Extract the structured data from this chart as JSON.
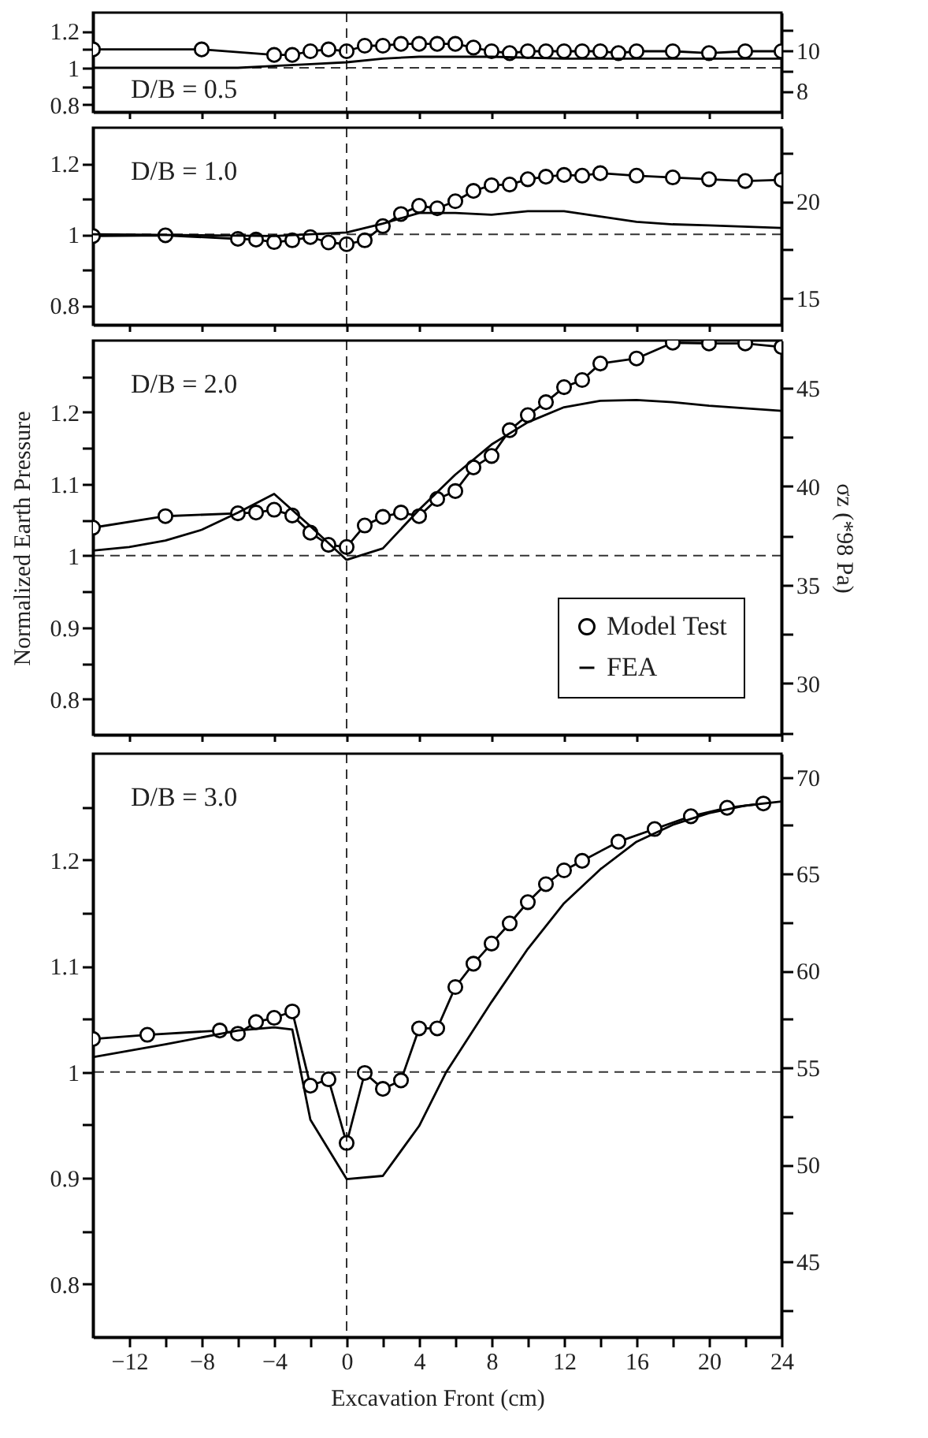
{
  "chart_data": [
    {
      "type": "line",
      "xlim": [
        -14,
        24
      ],
      "ylim": [
        0.76,
        1.3
      ],
      "y2lim": [
        6.95,
        11.9
      ],
      "tick_labels": "y",
      "grid": false,
      "line_style": "solid",
      "xticks": [
        {
          "value": -12,
          "label": null
        },
        {
          "value": -8,
          "label": null
        },
        {
          "value": -4,
          "label": null
        },
        {
          "value": 0,
          "label": null
        },
        {
          "value": 4,
          "label": null
        },
        {
          "value": 8,
          "label": null
        },
        {
          "value": 12,
          "label": null
        },
        {
          "value": 16,
          "label": null
        },
        {
          "value": 20,
          "label": null
        },
        {
          "value": 24,
          "label": null
        }
      ],
      "yticks": [
        0.8,
        {
          "value": 0.9,
          "label": null
        },
        1,
        {
          "value": 1.1,
          "label": null
        },
        1.2
      ],
      "y2ticks": [
        8,
        {
          "value": 9,
          "label": null
        },
        10,
        {
          "value": 11,
          "label": null
        }
      ],
      "annotations": [
        "D/B = 0.5"
      ],
      "ref_lines": [
        {
          "axis": "y",
          "value": 1,
          "color": "#000000",
          "line_style": "dashed"
        },
        {
          "axis": "x",
          "value": 0,
          "color": "#000000",
          "line_style": "dashed"
        }
      ],
      "series": [
        {
          "color": "#000000",
          "marker": "circle",
          "x": [
            -14,
            -8,
            -4,
            -3,
            -2,
            -1,
            0,
            1,
            2,
            3,
            4,
            5,
            6,
            7,
            8,
            9,
            10,
            11,
            12,
            13,
            14,
            15,
            16,
            18,
            20,
            22,
            24
          ],
          "values": [
            1.1,
            1.1,
            1.07,
            1.07,
            1.09,
            1.1,
            1.09,
            1.12,
            1.12,
            1.13,
            1.13,
            1.13,
            1.13,
            1.11,
            1.09,
            1.08,
            1.09,
            1.09,
            1.09,
            1.09,
            1.09,
            1.08,
            1.09,
            1.09,
            1.08,
            1.09,
            1.09
          ]
        },
        {
          "color": "#000000",
          "marker": "none",
          "x": [
            -14,
            -10,
            -6,
            -4,
            -2,
            0,
            2,
            4,
            6,
            8,
            12,
            16,
            20,
            24
          ],
          "values": [
            1.0,
            1.0,
            1.0,
            1.01,
            1.02,
            1.03,
            1.05,
            1.06,
            1.06,
            1.06,
            1.05,
            1.05,
            1.05,
            1.05
          ]
        }
      ]
    },
    {
      "type": "line",
      "xlim": [
        -14,
        24
      ],
      "ylim": [
        0.745,
        1.3
      ],
      "y2lim": [
        13.63,
        23.8
      ],
      "tick_labels": "y",
      "grid": false,
      "line_style": "solid",
      "xticks": [
        {
          "value": -12,
          "label": null
        },
        {
          "value": -8,
          "label": null
        },
        {
          "value": -4,
          "label": null
        },
        {
          "value": 0,
          "label": null
        },
        {
          "value": 4,
          "label": null
        },
        {
          "value": 8,
          "label": null
        },
        {
          "value": 12,
          "label": null
        },
        {
          "value": 16,
          "label": null
        },
        {
          "value": 20,
          "label": null
        },
        {
          "value": 24,
          "label": null
        }
      ],
      "yticks": [
        0.8,
        {
          "value": 0.9,
          "label": null
        },
        1,
        {
          "value": 1.1,
          "label": null
        },
        1.2
      ],
      "y2ticks": [
        15,
        {
          "value": 17.5,
          "label": null
        },
        20,
        {
          "value": 22.5,
          "label": null
        }
      ],
      "annotations": [
        "D/B = 1.0"
      ],
      "ref_lines": [
        {
          "axis": "y",
          "value": 1,
          "color": "#000000",
          "line_style": "dashed"
        },
        {
          "axis": "x",
          "value": 0,
          "color": "#000000",
          "line_style": "dashed"
        }
      ],
      "series": [
        {
          "color": "#000000",
          "marker": "circle",
          "x": [
            -14,
            -10,
            -6,
            -5,
            -4,
            -3,
            -2,
            -1,
            0,
            1,
            2,
            3,
            4,
            5,
            6,
            7,
            8,
            9,
            10,
            11,
            12,
            13,
            14,
            16,
            18,
            20,
            22,
            24
          ],
          "values": [
            0.995,
            0.997,
            0.987,
            0.985,
            0.978,
            0.983,
            0.992,
            0.977,
            0.972,
            0.983,
            1.023,
            1.057,
            1.08,
            1.073,
            1.093,
            1.122,
            1.138,
            1.14,
            1.155,
            1.162,
            1.167,
            1.165,
            1.172,
            1.165,
            1.16,
            1.155,
            1.15,
            1.153
          ]
        },
        {
          "color": "#000000",
          "marker": "none",
          "x": [
            -14,
            -4,
            0,
            2,
            4,
            6,
            8,
            10,
            12,
            14,
            16,
            18,
            20,
            24
          ],
          "values": [
            1.0,
            0.995,
            1.005,
            1.03,
            1.06,
            1.06,
            1.055,
            1.065,
            1.065,
            1.05,
            1.035,
            1.028,
            1.025,
            1.018
          ]
        }
      ]
    },
    {
      "type": "line",
      "xlim": [
        -14,
        24
      ],
      "ylim": [
        0.75,
        1.3
      ],
      "y2lim": [
        27.4,
        47.4
      ],
      "tick_labels": "y",
      "grid": false,
      "line_style": "solid",
      "legend": "bottom right",
      "ylabel": "Normalized Earth Pressure",
      "y2label": "σz (*98 Pa)",
      "xticks": [
        {
          "value": -12,
          "label": null
        },
        {
          "value": -8,
          "label": null
        },
        {
          "value": -4,
          "label": null
        },
        {
          "value": 0,
          "label": null
        },
        {
          "value": 4,
          "label": null
        },
        {
          "value": 8,
          "label": null
        },
        {
          "value": 12,
          "label": null
        },
        {
          "value": 16,
          "label": null
        },
        {
          "value": 20,
          "label": null
        },
        {
          "value": 24,
          "label": null
        }
      ],
      "yticks": [
        0.8,
        {
          "value": 0.85,
          "label": null
        },
        0.9,
        {
          "value": 0.95,
          "label": null
        },
        1,
        {
          "value": 1.05,
          "label": null
        },
        1.1,
        {
          "value": 1.15,
          "label": null
        },
        1.2,
        {
          "value": 1.25,
          "label": null
        }
      ],
      "y2ticks": [
        {
          "value": 27.5,
          "label": null
        },
        30,
        {
          "value": 32.5,
          "label": null
        },
        35,
        {
          "value": 37.5,
          "label": null
        },
        40,
        {
          "value": 42.5,
          "label": null
        },
        45
      ],
      "annotations": [
        "D/B = 2.0"
      ],
      "ref_lines": [
        {
          "axis": "y",
          "value": 1,
          "color": "#000000",
          "line_style": "dashed"
        },
        {
          "axis": "x",
          "value": 0,
          "color": "#000000",
          "line_style": "dashed"
        }
      ],
      "series": [
        {
          "name": "Model Test",
          "color": "#000000",
          "marker": "circle",
          "x": [
            -14,
            -10,
            -6,
            -5,
            -4,
            -3,
            -2,
            -1,
            0,
            1,
            2,
            3,
            4,
            5,
            6,
            7,
            8,
            9,
            10,
            11,
            12,
            13,
            14,
            16,
            18,
            20,
            22,
            24
          ],
          "values": [
            1.039,
            1.055,
            1.059,
            1.06,
            1.064,
            1.056,
            1.032,
            1.015,
            1.012,
            1.042,
            1.054,
            1.06,
            1.055,
            1.079,
            1.09,
            1.123,
            1.139,
            1.175,
            1.196,
            1.214,
            1.235,
            1.245,
            1.268,
            1.275,
            1.297,
            1.296,
            1.296,
            1.291
          ]
        },
        {
          "name": "FEA",
          "color": "#000000",
          "marker": "none",
          "x": [
            -14,
            -12,
            -10,
            -8,
            -6,
            -4,
            -2,
            0,
            2,
            4,
            6,
            8,
            10,
            12,
            14,
            16,
            18,
            20,
            24
          ],
          "values": [
            1.007,
            1.012,
            1.021,
            1.036,
            1.06,
            1.086,
            1.041,
            0.994,
            1.01,
            1.064,
            1.113,
            1.155,
            1.186,
            1.207,
            1.216,
            1.217,
            1.214,
            1.209,
            1.202
          ]
        }
      ]
    },
    {
      "type": "line",
      "xlim": [
        -14,
        24
      ],
      "ylim": [
        0.75,
        1.3
      ],
      "y2lim": [
        41.1,
        71.2
      ],
      "grid": false,
      "line_style": "solid",
      "xlabel": "Excavation Front (cm)",
      "xticks": [
        {
          "value": -12,
          "label": "−12"
        },
        {
          "value": -10,
          "label": null
        },
        {
          "value": -8,
          "label": "−8"
        },
        {
          "value": -6,
          "label": null
        },
        {
          "value": -4,
          "label": "−4"
        },
        {
          "value": -2,
          "label": null
        },
        0,
        {
          "value": 2,
          "label": null
        },
        4,
        {
          "value": 6,
          "label": null
        },
        8,
        {
          "value": 10,
          "label": null
        },
        12,
        {
          "value": 14,
          "label": null
        },
        16,
        {
          "value": 18,
          "label": null
        },
        20,
        {
          "value": 22,
          "label": null
        },
        24
      ],
      "yticks": [
        0.8,
        {
          "value": 0.85,
          "label": null
        },
        0.9,
        {
          "value": 0.95,
          "label": null
        },
        1,
        {
          "value": 1.05,
          "label": null
        },
        1.1,
        {
          "value": 1.15,
          "label": null
        },
        1.2,
        {
          "value": 1.25,
          "label": null
        }
      ],
      "y2ticks": [
        {
          "value": 42.5,
          "label": null
        },
        45,
        {
          "value": 47.5,
          "label": null
        },
        50,
        {
          "value": 52.5,
          "label": null
        },
        55,
        {
          "value": 57.5,
          "label": null
        },
        60,
        {
          "value": 62.5,
          "label": null
        },
        65,
        {
          "value": 67.5,
          "label": null
        },
        70
      ],
      "annotations": [
        "D/B = 3.0"
      ],
      "ref_lines": [
        {
          "axis": "y",
          "value": 1,
          "color": "#000000",
          "line_style": "dashed"
        },
        {
          "axis": "x",
          "value": 0,
          "color": "#000000",
          "line_style": "dashed"
        }
      ],
      "series": [
        {
          "color": "#000000",
          "marker": "circle",
          "x": [
            -14,
            -11,
            -7,
            -6,
            -5,
            -4,
            -3,
            -2,
            -1,
            0,
            1,
            2,
            3,
            4,
            5,
            6,
            7,
            8,
            9,
            10,
            11,
            12,
            13,
            15,
            17,
            19,
            21,
            23
          ],
          "values": [
            1.031,
            1.035,
            1.039,
            1.036,
            1.047,
            1.051,
            1.057,
            0.987,
            0.993,
            0.933,
            0.999,
            0.984,
            0.992,
            1.041,
            1.041,
            1.08,
            1.102,
            1.121,
            1.14,
            1.16,
            1.177,
            1.19,
            1.199,
            1.217,
            1.229,
            1.241,
            1.249,
            1.253
          ]
        },
        {
          "color": "#000000",
          "marker": "none",
          "x": [
            -14,
            -10,
            -6,
            -4,
            -3,
            -2,
            0,
            2,
            4,
            5.5,
            8,
            10,
            12,
            14,
            16,
            18,
            20,
            22,
            24
          ],
          "values": [
            1.014,
            1.026,
            1.039,
            1.042,
            1.04,
            0.955,
            0.899,
            0.902,
            0.949,
            1.0,
            1.066,
            1.116,
            1.159,
            1.191,
            1.217,
            1.233,
            1.244,
            1.251,
            1.255
          ]
        }
      ]
    }
  ]
}
